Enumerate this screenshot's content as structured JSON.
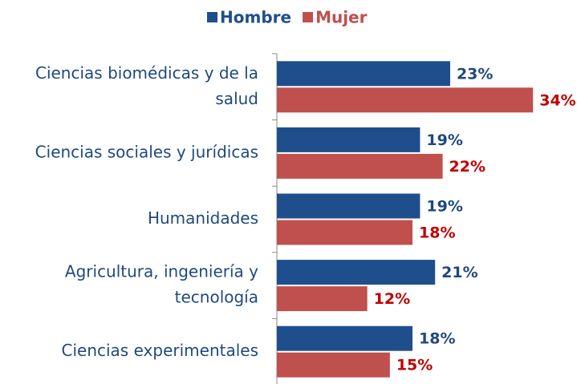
{
  "chart_data": {
    "type": "bar",
    "orientation": "horizontal",
    "categories": [
      [
        "Ciencias biomédicas y de la",
        "salud"
      ],
      [
        "Ciencias sociales y jurídicas"
      ],
      [
        "Humanidades"
      ],
      [
        "Agricultura, ingeniería y",
        "tecnología"
      ],
      [
        "Ciencias experimentales"
      ]
    ],
    "series": [
      {
        "name": "Hombre",
        "color": "#1f4e8c",
        "label_color": "#1f497d",
        "values": [
          23,
          19,
          19,
          21,
          18
        ],
        "value_labels": [
          "23%",
          "19%",
          "19%",
          "21%",
          "18%"
        ]
      },
      {
        "name": "Mujer",
        "color": "#c0504d",
        "label_color": "#c00000",
        "values": [
          34,
          22,
          18,
          12,
          15
        ],
        "value_labels": [
          "34%",
          "22%",
          "18%",
          "12%",
          "15%"
        ]
      }
    ],
    "xlim": [
      0,
      36
    ],
    "legend": "top"
  }
}
